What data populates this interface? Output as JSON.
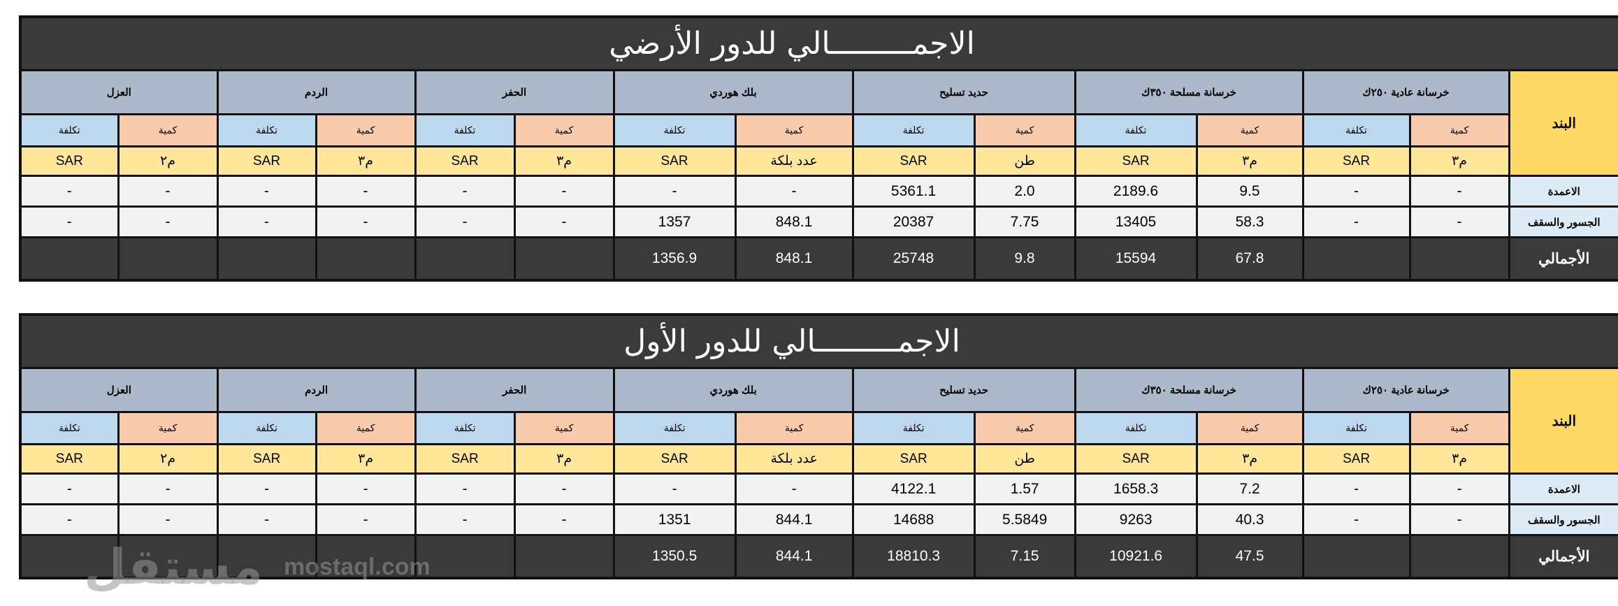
{
  "groups": [
    "خرسانة عادية ٢٥٠ك",
    "خرسانة مسلحة ٣٥٠ك",
    "حديد تسليح",
    "بلك هوردي",
    "الحفر",
    "الردم",
    "العزل"
  ],
  "item_label": "البند",
  "qty_label": "كمية",
  "cost_label": "تكلفة",
  "units": [
    "م٣",
    "م٣",
    "طن",
    "عدد بلكة",
    "م٣",
    "م٣",
    "م٢"
  ],
  "currency": "SAR",
  "colors": {
    "title_bg": "#3b3a3a",
    "group_bg": "#acb9ca",
    "qty_bg": "#f8cbad",
    "cost_bg": "#bdd7ee",
    "unit_bg": "#ffe699",
    "item_bg": "#ffd966",
    "row_label_bg": "#ddebf7"
  },
  "tables": [
    {
      "title": "الاجمـــــــــالي للدور الأرضي",
      "rows": [
        {
          "label": "الاعمدة",
          "values": [
            "-",
            "-",
            "9.5",
            "2189.6",
            "2.0",
            "5361.1",
            "-",
            "-",
            "-",
            "-",
            "-",
            "-",
            "-",
            "-"
          ]
        },
        {
          "label": "الجسور والسقف",
          "values": [
            "-",
            "-",
            "58.3",
            "13405",
            "7.75",
            "20387",
            "848.1",
            "1357",
            "-",
            "-",
            "-",
            "-",
            "-",
            "-"
          ]
        },
        {
          "label": "الأجمالي",
          "values": [
            "",
            "",
            "67.8",
            "15594",
            "9.8",
            "25748",
            "848.1",
            "1356.9",
            "",
            "",
            "",
            "",
            "",
            ""
          ]
        }
      ]
    },
    {
      "title": "الاجمـــــــــالي للدور الأول",
      "rows": [
        {
          "label": "الاعمدة",
          "values": [
            "-",
            "-",
            "7.2",
            "1658.3",
            "1.57",
            "4122.1",
            "-",
            "-",
            "-",
            "-",
            "-",
            "-",
            "-",
            "-"
          ]
        },
        {
          "label": "الجسور والسقف",
          "values": [
            "-",
            "-",
            "40.3",
            "9263",
            "5.5849",
            "14688",
            "844.1",
            "1351",
            "-",
            "-",
            "-",
            "-",
            "-",
            "-"
          ]
        },
        {
          "label": "الأجمالي",
          "values": [
            "",
            "",
            "47.5",
            "10921.6",
            "7.15",
            "18810.3",
            "844.1",
            "1350.5",
            "",
            "",
            "",
            "",
            "",
            ""
          ]
        }
      ]
    }
  ],
  "watermark": {
    "arabic": "مستقل",
    "latin": "mostaql.com"
  }
}
